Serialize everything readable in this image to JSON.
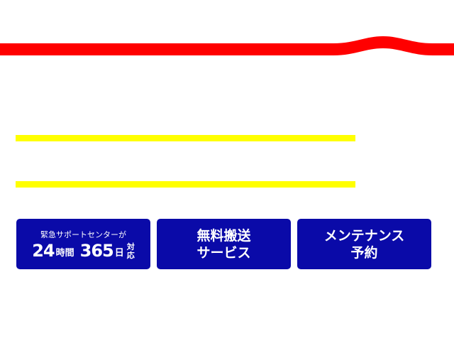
{
  "colors": {
    "ribbon": "#ff0000",
    "lines": "#ffff00",
    "button": "#0a0aa8"
  },
  "buttons": [
    {
      "top": "緊急サポートセンターが",
      "hours_num": "24",
      "hours_unit": "時間",
      "days_num": "365",
      "days_unit": "日",
      "v1": "対",
      "v2": "応"
    },
    {
      "line1": "無料搬送",
      "line2": "サービス"
    },
    {
      "line1": "メンテナンス",
      "line2": "予約"
    }
  ]
}
